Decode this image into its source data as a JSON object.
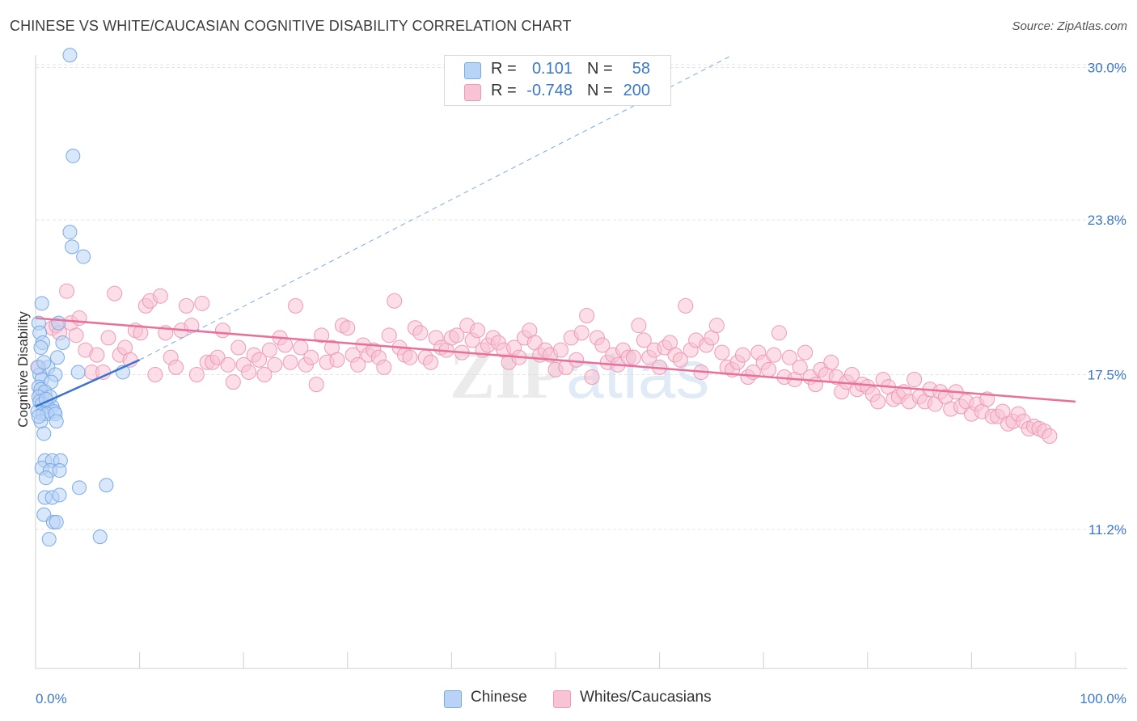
{
  "header": {
    "title": "CHINESE VS WHITE/CAUCASIAN COGNITIVE DISABILITY CORRELATION CHART",
    "source": "Source: ZipAtlas.com"
  },
  "legend": {
    "rows": [
      {
        "r_label": "R =",
        "r_value": "0.101",
        "n_label": "N =",
        "n_value": "58"
      },
      {
        "r_label": "R =",
        "r_value": "-0.748",
        "n_label": "N =",
        "n_value": "200"
      }
    ]
  },
  "bottom_legend": {
    "items": [
      {
        "label": "Chinese"
      },
      {
        "label": "Whites/Caucasians"
      }
    ]
  },
  "watermark": {
    "zip": "ZIP",
    "atlas": "atlas"
  },
  "colors": {
    "chinese_fill": "#b8d3f5",
    "chinese_stroke": "#7aaae6",
    "chinese_line": "#3a74cf",
    "white_fill": "#f8c3d4",
    "white_stroke": "#ee9ab6",
    "white_line": "#e8709a",
    "tick_label": "#3b78c9",
    "grid": "#e4e4e4"
  },
  "chart_data": {
    "type": "scatter",
    "title": "CHINESE VS WHITE/CAUCASIAN COGNITIVE DISABILITY CORRELATION CHART",
    "xlabel": "",
    "ylabel": "Cognitive Disability",
    "xlim": [
      0,
      100
    ],
    "ylim": [
      5.0,
      31.0
    ],
    "x_tick_labels": [
      "0.0%",
      "100.0%"
    ],
    "y_ticks": [
      11.2,
      17.5,
      23.8,
      30.0
    ],
    "y_tick_labels": [
      "11.2%",
      "17.5%",
      "23.8%",
      "30.0%"
    ],
    "grid": true,
    "legend_position": "top-center",
    "series": [
      {
        "name": "Chinese",
        "r": 0.101,
        "n": 58,
        "trend": {
          "x0": 0,
          "y0": 16.2,
          "x1": 10,
          "y1": 18.1,
          "dashed_to_x": 67,
          "dashed_to_y": 30.5
        },
        "points": [
          [
            3.3,
            30.5
          ],
          [
            3.6,
            26.4
          ],
          [
            3.3,
            23.3
          ],
          [
            3.5,
            22.7
          ],
          [
            4.6,
            22.3
          ],
          [
            0.6,
            20.4
          ],
          [
            0.3,
            19.6
          ],
          [
            2.2,
            19.6
          ],
          [
            0.4,
            19.2
          ],
          [
            0.7,
            18.8
          ],
          [
            2.6,
            18.8
          ],
          [
            0.5,
            18.6
          ],
          [
            2.1,
            18.2
          ],
          [
            1.2,
            17.8
          ],
          [
            0.4,
            17.5
          ],
          [
            1.9,
            17.5
          ],
          [
            0.6,
            17.3
          ],
          [
            1.5,
            17.2
          ],
          [
            4.1,
            17.6
          ],
          [
            8.4,
            17.6
          ],
          [
            0.3,
            17.0
          ],
          [
            0.5,
            16.9
          ],
          [
            0.9,
            16.8
          ],
          [
            0.3,
            16.6
          ],
          [
            0.4,
            16.4
          ],
          [
            0.6,
            16.3
          ],
          [
            1.2,
            16.2
          ],
          [
            1.6,
            16.2
          ],
          [
            0.2,
            16.0
          ],
          [
            1.8,
            16.0
          ],
          [
            0.7,
            15.9
          ],
          [
            1.1,
            15.9
          ],
          [
            1.9,
            15.9
          ],
          [
            0.5,
            15.6
          ],
          [
            2.0,
            15.6
          ],
          [
            0.8,
            15.1
          ],
          [
            0.9,
            14.0
          ],
          [
            1.6,
            14.0
          ],
          [
            2.4,
            14.0
          ],
          [
            0.6,
            13.7
          ],
          [
            1.4,
            13.6
          ],
          [
            2.3,
            13.6
          ],
          [
            1.0,
            13.3
          ],
          [
            4.2,
            12.9
          ],
          [
            6.8,
            13.0
          ],
          [
            0.9,
            12.5
          ],
          [
            1.6,
            12.5
          ],
          [
            2.3,
            12.6
          ],
          [
            0.8,
            11.8
          ],
          [
            1.7,
            11.5
          ],
          [
            2.0,
            11.5
          ],
          [
            1.3,
            10.8
          ],
          [
            6.2,
            10.9
          ],
          [
            0.2,
            17.8
          ],
          [
            0.8,
            18.0
          ],
          [
            1.4,
            16.6
          ],
          [
            0.3,
            15.8
          ],
          [
            1.0,
            16.5
          ]
        ]
      },
      {
        "name": "Whites/Caucasians",
        "r": -0.748,
        "n": 200,
        "trend": {
          "x0": 0,
          "y0": 19.8,
          "x1": 100,
          "y1": 16.4
        },
        "points": [
          [
            0.3,
            17.8
          ],
          [
            0.5,
            16.7
          ],
          [
            1.6,
            19.4
          ],
          [
            2.0,
            19.5
          ],
          [
            2.3,
            19.2
          ],
          [
            3.0,
            20.9
          ],
          [
            3.4,
            19.6
          ],
          [
            3.9,
            19.1
          ],
          [
            4.2,
            19.8
          ],
          [
            4.8,
            18.5
          ],
          [
            5.4,
            17.6
          ],
          [
            5.9,
            18.3
          ],
          [
            6.5,
            17.6
          ],
          [
            7.0,
            19.0
          ],
          [
            7.6,
            20.8
          ],
          [
            8.1,
            18.3
          ],
          [
            8.6,
            18.6
          ],
          [
            9.1,
            18.1
          ],
          [
            9.6,
            19.3
          ],
          [
            10.1,
            19.2
          ],
          [
            10.6,
            20.3
          ],
          [
            11.0,
            20.5
          ],
          [
            11.5,
            17.5
          ],
          [
            12.0,
            20.7
          ],
          [
            12.5,
            19.2
          ],
          [
            13.0,
            18.2
          ],
          [
            13.5,
            17.8
          ],
          [
            14.0,
            19.3
          ],
          [
            14.5,
            20.3
          ],
          [
            15.0,
            19.5
          ],
          [
            15.5,
            17.5
          ],
          [
            16.0,
            20.4
          ],
          [
            16.5,
            18.0
          ],
          [
            17.0,
            18.0
          ],
          [
            17.5,
            18.2
          ],
          [
            18.0,
            19.3
          ],
          [
            18.5,
            17.9
          ],
          [
            19.0,
            17.2
          ],
          [
            19.5,
            18.6
          ],
          [
            20.0,
            17.9
          ],
          [
            20.5,
            17.6
          ],
          [
            21.0,
            18.3
          ],
          [
            21.5,
            18.1
          ],
          [
            22.0,
            17.5
          ],
          [
            22.5,
            18.5
          ],
          [
            23.0,
            17.9
          ],
          [
            23.5,
            19.0
          ],
          [
            24.0,
            18.7
          ],
          [
            24.5,
            18.0
          ],
          [
            25.0,
            20.3
          ],
          [
            25.5,
            18.6
          ],
          [
            26.0,
            17.9
          ],
          [
            26.5,
            18.2
          ],
          [
            27.0,
            17.1
          ],
          [
            27.5,
            19.1
          ],
          [
            28.0,
            18.0
          ],
          [
            28.5,
            18.6
          ],
          [
            29.0,
            18.1
          ],
          [
            29.5,
            19.5
          ],
          [
            30.0,
            19.4
          ],
          [
            30.5,
            18.3
          ],
          [
            31.0,
            17.9
          ],
          [
            31.5,
            18.7
          ],
          [
            32.0,
            18.3
          ],
          [
            32.5,
            18.5
          ],
          [
            33.0,
            18.2
          ],
          [
            33.5,
            17.8
          ],
          [
            34.0,
            19.1
          ],
          [
            34.5,
            20.5
          ],
          [
            35.0,
            18.6
          ],
          [
            35.5,
            18.3
          ],
          [
            36.0,
            18.2
          ],
          [
            36.5,
            19.4
          ],
          [
            37.0,
            19.2
          ],
          [
            37.5,
            18.2
          ],
          [
            38.0,
            18.0
          ],
          [
            38.5,
            19.0
          ],
          [
            39.0,
            18.6
          ],
          [
            39.5,
            18.5
          ],
          [
            40.0,
            19.0
          ],
          [
            40.5,
            19.1
          ],
          [
            41.0,
            18.4
          ],
          [
            41.5,
            19.5
          ],
          [
            42.0,
            18.9
          ],
          [
            42.5,
            19.3
          ],
          [
            43.0,
            18.5
          ],
          [
            43.5,
            18.7
          ],
          [
            44.0,
            19.0
          ],
          [
            44.5,
            18.8
          ],
          [
            45.0,
            18.5
          ],
          [
            45.5,
            18.0
          ],
          [
            46.0,
            18.6
          ],
          [
            46.5,
            18.2
          ],
          [
            47.0,
            19.0
          ],
          [
            47.5,
            19.3
          ],
          [
            48.0,
            18.8
          ],
          [
            48.5,
            18.3
          ],
          [
            49.0,
            18.5
          ],
          [
            49.5,
            18.3
          ],
          [
            50.0,
            17.7
          ],
          [
            50.5,
            18.5
          ],
          [
            51.0,
            17.8
          ],
          [
            51.5,
            19.0
          ],
          [
            52.0,
            18.1
          ],
          [
            52.5,
            19.2
          ],
          [
            53.0,
            19.9
          ],
          [
            53.5,
            17.4
          ],
          [
            54.0,
            19.0
          ],
          [
            54.5,
            18.7
          ],
          [
            55.0,
            18.0
          ],
          [
            55.5,
            18.3
          ],
          [
            56.0,
            17.9
          ],
          [
            56.5,
            18.5
          ],
          [
            57.0,
            18.2
          ],
          [
            57.5,
            18.2
          ],
          [
            58.0,
            19.5
          ],
          [
            58.5,
            18.9
          ],
          [
            59.0,
            18.2
          ],
          [
            59.5,
            18.5
          ],
          [
            60.0,
            17.8
          ],
          [
            60.5,
            18.6
          ],
          [
            61.0,
            18.8
          ],
          [
            61.5,
            18.3
          ],
          [
            62.0,
            18.1
          ],
          [
            62.5,
            20.3
          ],
          [
            63.0,
            18.5
          ],
          [
            63.5,
            18.9
          ],
          [
            64.0,
            17.6
          ],
          [
            64.5,
            18.7
          ],
          [
            65.0,
            19.0
          ],
          [
            65.5,
            19.5
          ],
          [
            66.0,
            18.4
          ],
          [
            66.5,
            17.8
          ],
          [
            67.0,
            17.7
          ],
          [
            67.5,
            18.0
          ],
          [
            68.0,
            18.3
          ],
          [
            68.5,
            17.4
          ],
          [
            69.0,
            17.6
          ],
          [
            69.5,
            18.4
          ],
          [
            70.0,
            18.0
          ],
          [
            70.5,
            17.7
          ],
          [
            71.0,
            18.3
          ],
          [
            71.5,
            19.2
          ],
          [
            72.0,
            17.4
          ],
          [
            72.5,
            18.2
          ],
          [
            73.0,
            17.3
          ],
          [
            73.5,
            17.8
          ],
          [
            74.0,
            18.4
          ],
          [
            74.5,
            17.4
          ],
          [
            75.0,
            17.1
          ],
          [
            75.5,
            17.7
          ],
          [
            76.0,
            17.5
          ],
          [
            76.5,
            18.0
          ],
          [
            77.0,
            17.4
          ],
          [
            77.5,
            16.8
          ],
          [
            78.0,
            17.2
          ],
          [
            78.5,
            17.5
          ],
          [
            79.0,
            16.9
          ],
          [
            79.5,
            17.1
          ],
          [
            80.0,
            17.0
          ],
          [
            80.5,
            16.7
          ],
          [
            81.0,
            16.4
          ],
          [
            81.5,
            17.3
          ],
          [
            82.0,
            17.0
          ],
          [
            82.5,
            16.5
          ],
          [
            83.0,
            16.6
          ],
          [
            83.5,
            16.8
          ],
          [
            84.0,
            16.4
          ],
          [
            84.5,
            17.3
          ],
          [
            85.0,
            16.6
          ],
          [
            85.5,
            16.4
          ],
          [
            86.0,
            16.9
          ],
          [
            86.5,
            16.3
          ],
          [
            87.0,
            16.8
          ],
          [
            87.5,
            16.6
          ],
          [
            88.0,
            16.1
          ],
          [
            88.5,
            16.8
          ],
          [
            89.0,
            16.2
          ],
          [
            89.5,
            16.4
          ],
          [
            90.0,
            15.9
          ],
          [
            90.5,
            16.3
          ],
          [
            91.0,
            16.0
          ],
          [
            91.5,
            16.5
          ],
          [
            92.0,
            15.8
          ],
          [
            92.5,
            15.8
          ],
          [
            93.0,
            16.0
          ],
          [
            93.5,
            15.5
          ],
          [
            94.0,
            15.6
          ],
          [
            94.5,
            15.9
          ],
          [
            95.0,
            15.6
          ],
          [
            95.5,
            15.3
          ],
          [
            96.0,
            15.4
          ],
          [
            96.5,
            15.3
          ],
          [
            97.0,
            15.2
          ],
          [
            97.5,
            15.0
          ]
        ]
      }
    ]
  }
}
